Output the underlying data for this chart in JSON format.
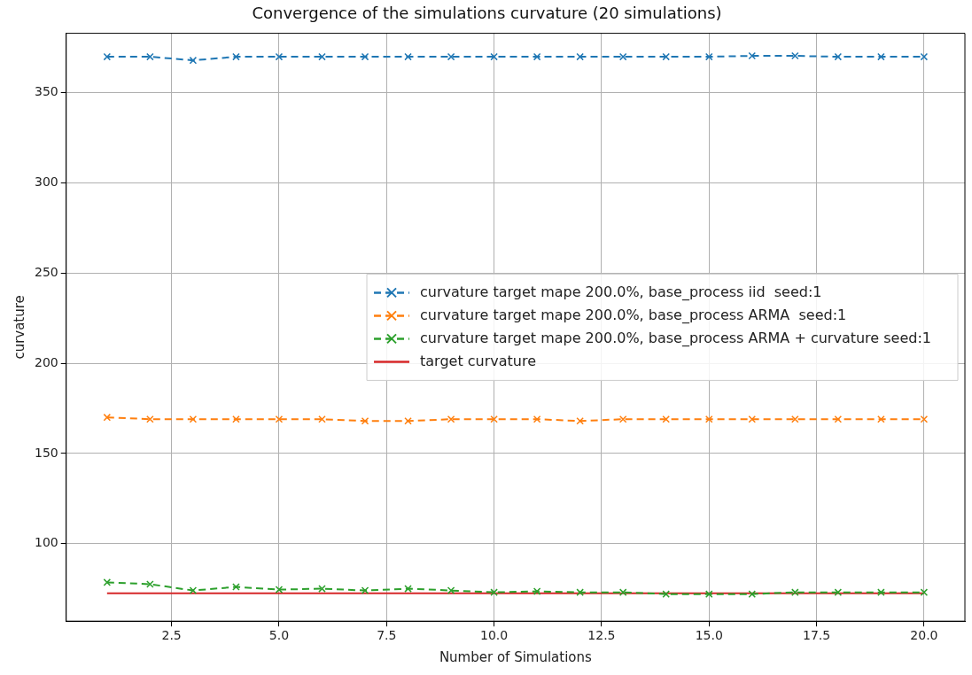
{
  "chart_data": {
    "type": "line",
    "title": "Convergence of the simulations curvature (20 simulations)",
    "xlabel": "Number of Simulations",
    "ylabel": "curvature",
    "x": [
      1,
      2,
      3,
      4,
      5,
      6,
      7,
      8,
      9,
      10,
      11,
      12,
      13,
      14,
      15,
      16,
      17,
      18,
      19,
      20
    ],
    "series": [
      {
        "name": "curvature target mape 200.0%, base_process iid  seed:1",
        "color": "#1f77b4",
        "line_style": "dashed",
        "marker": "cross",
        "values": [
          370,
          370,
          368,
          370,
          370,
          370,
          370,
          370,
          370,
          370,
          370,
          370,
          370,
          370,
          370,
          370.5,
          370.5,
          370,
          370,
          370
        ]
      },
      {
        "name": "curvature target mape 200.0%, base_process ARMA  seed:1",
        "color": "#ff7f0e",
        "line_style": "dashed",
        "marker": "cross",
        "values": [
          170,
          169,
          169,
          169,
          169,
          169,
          168,
          168,
          169,
          169,
          169,
          168,
          169,
          169,
          169,
          169,
          169,
          169,
          169,
          169
        ]
      },
      {
        "name": "curvature target mape 200.0%, base_process ARMA + curvature seed:1",
        "color": "#2ca02c",
        "line_style": "dashed",
        "marker": "cross",
        "values": [
          78.5,
          77.5,
          74,
          76,
          74.5,
          75,
          74,
          75,
          74,
          73,
          73.5,
          73,
          73,
          72,
          72,
          72,
          73,
          73,
          73,
          73
        ]
      },
      {
        "name": "target curvature",
        "color": "#d62728",
        "line_style": "solid",
        "marker": "none",
        "x": [
          1,
          20
        ],
        "values": [
          72.5,
          72.5
        ]
      }
    ],
    "xlim": [
      0.05,
      20.95
    ],
    "xticks": [
      {
        "value": 2.5,
        "label": "2.5"
      },
      {
        "value": 5,
        "label": "5.0"
      },
      {
        "value": 7.5,
        "label": "7.5"
      },
      {
        "value": 10,
        "label": "10.0"
      },
      {
        "value": 12.5,
        "label": "12.5"
      },
      {
        "value": 15,
        "label": "15.0"
      },
      {
        "value": 17.5,
        "label": "17.5"
      },
      {
        "value": 20,
        "label": "20.0"
      }
    ],
    "ylim": [
      57,
      383
    ],
    "yticks": [
      100,
      150,
      200,
      250,
      300,
      350
    ],
    "grid": true,
    "legend": "right"
  }
}
